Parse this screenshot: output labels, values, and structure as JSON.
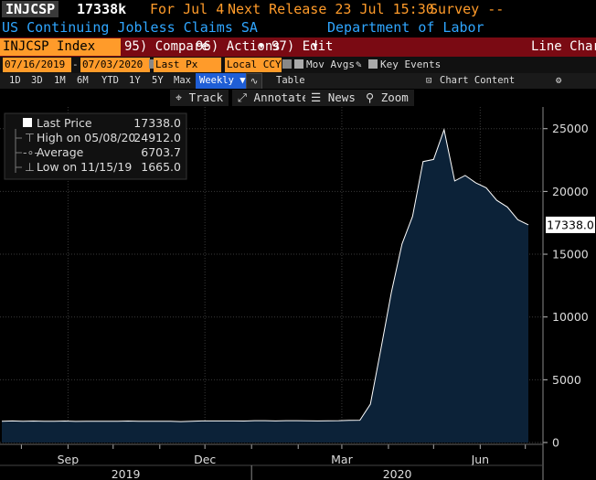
{
  "header": {
    "ticker": "INJCSP",
    "last_value": "17338k",
    "period": "For Jul 4",
    "next_release": "Next Release 23 Jul 15:30",
    "survey": "Survey --"
  },
  "subheader": {
    "name": "US Continuing Jobless Claims SA",
    "source": "Department of Labor"
  },
  "toolbar": {
    "index": "INJCSP Index",
    "compare": "95) Compare",
    "actions": "96) Actions",
    "edit": "97) Edit",
    "chart_type": "Line Chart"
  },
  "controls": {
    "start_date": "07/16/2019",
    "end_date": "07/03/2020",
    "field": "Last Px",
    "currency": "Local CCY",
    "mov_avgs": "Mov Avgs",
    "key_events": "Key Events"
  },
  "periods": [
    "1D",
    "3D",
    "1M",
    "6M",
    "YTD",
    "1Y",
    "5Y",
    "Max"
  ],
  "frequency": "Weekly",
  "table_label": "Table",
  "chart_content_label": "Chart Content",
  "tools": {
    "track": "Track",
    "annotate": "Annotate",
    "news": "News",
    "zoom": "Zoom"
  },
  "legend": {
    "last_price_label": "Last Price",
    "last_price_value": "17338.0",
    "high_label": "High on 05/08/20",
    "high_value": "24912.0",
    "average_label": "Average",
    "average_value": "6703.7",
    "low_label": "Low on 11/15/19",
    "low_value": "1665.0"
  },
  "colors": {
    "accent_orange": "#ff9b2a",
    "toolbar_red": "#7a0a13",
    "title_blue": "#2fa6ff",
    "area_fill": "#0c2238",
    "line": "#ffffff"
  },
  "chart_data": {
    "type": "area",
    "x": [
      "2019-07-19",
      "2019-07-26",
      "2019-08-02",
      "2019-08-09",
      "2019-08-16",
      "2019-08-23",
      "2019-08-30",
      "2019-09-06",
      "2019-09-13",
      "2019-09-20",
      "2019-09-27",
      "2019-10-04",
      "2019-10-11",
      "2019-10-18",
      "2019-10-25",
      "2019-11-01",
      "2019-11-08",
      "2019-11-15",
      "2019-11-22",
      "2019-11-29",
      "2019-12-06",
      "2019-12-13",
      "2019-12-20",
      "2019-12-27",
      "2020-01-03",
      "2020-01-10",
      "2020-01-17",
      "2020-01-24",
      "2020-01-31",
      "2020-02-07",
      "2020-02-14",
      "2020-02-21",
      "2020-02-28",
      "2020-03-06",
      "2020-03-13",
      "2020-03-20",
      "2020-03-27",
      "2020-04-03",
      "2020-04-10",
      "2020-04-17",
      "2020-04-24",
      "2020-05-01",
      "2020-05-08",
      "2020-05-15",
      "2020-05-22",
      "2020-05-29",
      "2020-06-05",
      "2020-06-12",
      "2020-06-19",
      "2020-06-26",
      "2020-07-03"
    ],
    "values": [
      1700,
      1720,
      1690,
      1710,
      1700,
      1690,
      1710,
      1680,
      1700,
      1690,
      1700,
      1690,
      1710,
      1700,
      1690,
      1700,
      1690,
      1665,
      1700,
      1720,
      1720,
      1720,
      1720,
      1710,
      1740,
      1740,
      1720,
      1740,
      1740,
      1730,
      1720,
      1730,
      1740,
      1770,
      1780,
      3060,
      7450,
      11980,
      15820,
      18010,
      22380,
      22550,
      24912,
      20840,
      21270,
      20690,
      20290,
      19290,
      18760,
      17750,
      17338
    ],
    "ylim": [
      0,
      26000
    ],
    "yticks": [
      0,
      5000,
      10000,
      15000,
      20000,
      25000
    ],
    "month_labels": [
      "Sep",
      "Dec",
      "Mar",
      "Jun"
    ],
    "year_labels": [
      "2019",
      "2020"
    ],
    "last_value_label": "17338.0",
    "grid": true
  }
}
